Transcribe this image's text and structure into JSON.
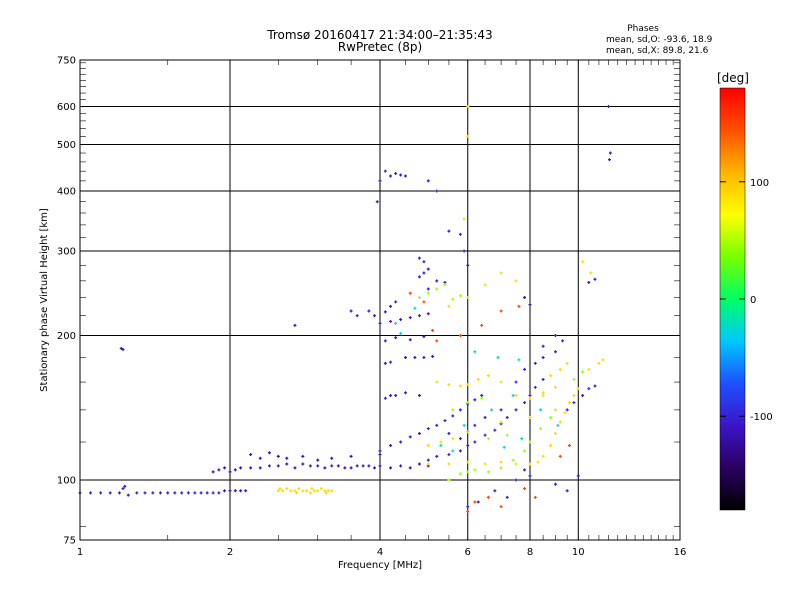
{
  "chart_data": {
    "type": "scatter",
    "title": "Tromsø 20160417 21:34:00–21:35:43",
    "subtitle": "RwPretec (8p)",
    "xlabel": "Frequency [MHz]",
    "ylabel": "Stationary phase Virtual Height [km]",
    "x_scale": "log",
    "y_scale": "log",
    "xlim": [
      1,
      16
    ],
    "ylim": [
      75,
      750
    ],
    "x_ticks": [
      1,
      2,
      4,
      6,
      8,
      10,
      16
    ],
    "y_ticks": [
      75,
      100,
      200,
      300,
      400,
      500,
      600,
      750
    ],
    "grid": true,
    "info": {
      "heading": "Phases",
      "line1": "mean, sd,O:  -93.6, 18.9",
      "line2": "mean, sd,X:  89.8, 21.6"
    },
    "colorbar": {
      "label": "[deg]",
      "ticks": [
        100,
        0,
        -100
      ],
      "range": [
        -180,
        180
      ],
      "colors": [
        "#000000",
        "#2a0060",
        "#3c14c8",
        "#1e50ff",
        "#00c8ff",
        "#00ff64",
        "#78ff00",
        "#ffff00",
        "#ffb400",
        "#ff5000",
        "#ff0000"
      ]
    },
    "series": [
      {
        "phase": -110,
        "points": [
          [
            1.0,
            94
          ],
          [
            1.05,
            94
          ],
          [
            1.1,
            94
          ],
          [
            1.15,
            94
          ],
          [
            1.2,
            94
          ],
          [
            1.25,
            93
          ],
          [
            1.3,
            94
          ],
          [
            1.35,
            94
          ],
          [
            1.4,
            94
          ],
          [
            1.45,
            94
          ],
          [
            1.5,
            94
          ],
          [
            1.55,
            94
          ],
          [
            1.6,
            94
          ],
          [
            1.65,
            94
          ],
          [
            1.7,
            94
          ],
          [
            1.75,
            94
          ],
          [
            1.8,
            94
          ],
          [
            1.85,
            94
          ],
          [
            1.9,
            94
          ],
          [
            1.95,
            95
          ],
          [
            2.0,
            95
          ],
          [
            2.05,
            95
          ],
          [
            2.1,
            95
          ],
          [
            2.15,
            95
          ],
          [
            1.22,
            96
          ],
          [
            1.23,
            97
          ],
          [
            1.21,
            188
          ],
          [
            1.22,
            187
          ]
        ]
      },
      {
        "phase": -115,
        "points": [
          [
            1.85,
            104
          ],
          [
            1.9,
            105
          ],
          [
            1.95,
            106
          ],
          [
            2.0,
            104
          ],
          [
            2.05,
            105
          ],
          [
            2.1,
            106
          ],
          [
            2.2,
            106
          ],
          [
            2.3,
            106
          ],
          [
            2.4,
            107
          ],
          [
            2.5,
            107
          ],
          [
            2.6,
            108
          ],
          [
            2.7,
            106
          ],
          [
            2.8,
            108
          ],
          [
            2.9,
            107
          ],
          [
            3.0,
            107
          ],
          [
            3.1,
            106
          ],
          [
            3.2,
            107
          ],
          [
            3.3,
            107
          ],
          [
            3.4,
            106
          ],
          [
            3.5,
            106
          ],
          [
            3.6,
            107
          ],
          [
            3.7,
            107
          ],
          [
            3.8,
            107
          ],
          [
            3.9,
            106
          ],
          [
            4.0,
            107
          ],
          [
            4.2,
            106
          ],
          [
            4.4,
            107
          ],
          [
            4.6,
            106
          ],
          [
            4.8,
            108
          ],
          [
            5.0,
            107
          ],
          [
            2.2,
            113
          ],
          [
            2.3,
            111
          ],
          [
            2.4,
            114
          ],
          [
            2.5,
            112
          ],
          [
            2.6,
            111
          ],
          [
            2.8,
            112
          ],
          [
            3.0,
            110
          ],
          [
            3.2,
            111
          ],
          [
            3.5,
            112
          ],
          [
            4.0,
            113
          ]
        ]
      },
      {
        "phase": -105,
        "points": [
          [
            4.0,
            115
          ],
          [
            4.2,
            118
          ],
          [
            4.4,
            120
          ],
          [
            4.6,
            123
          ],
          [
            4.8,
            125
          ],
          [
            5.0,
            128
          ],
          [
            5.2,
            130
          ],
          [
            5.4,
            133
          ],
          [
            5.6,
            136
          ],
          [
            5.8,
            140
          ],
          [
            6.0,
            144
          ],
          [
            6.2,
            147
          ],
          [
            6.4,
            150
          ],
          [
            4.1,
            148
          ],
          [
            4.2,
            150
          ],
          [
            4.3,
            150
          ],
          [
            4.5,
            152
          ],
          [
            4.8,
            150
          ],
          [
            4.1,
            175
          ],
          [
            4.2,
            176
          ],
          [
            4.5,
            180
          ],
          [
            4.7,
            180
          ],
          [
            4.9,
            180
          ],
          [
            5.1,
            181
          ],
          [
            4.0,
            212
          ],
          [
            4.2,
            214
          ],
          [
            4.4,
            216
          ],
          [
            4.6,
            218
          ],
          [
            4.8,
            220
          ],
          [
            5.0,
            222
          ],
          [
            3.8,
            225
          ],
          [
            3.9,
            220
          ],
          [
            4.1,
            224
          ],
          [
            4.2,
            230
          ],
          [
            4.3,
            235
          ],
          [
            4.1,
            195
          ],
          [
            4.3,
            198
          ],
          [
            4.6,
            196
          ],
          [
            4.9,
            199
          ],
          [
            4.8,
            265
          ],
          [
            4.9,
            270
          ],
          [
            5.0,
            275
          ],
          [
            5.2,
            260
          ],
          [
            5.4,
            258
          ],
          [
            4.8,
            290
          ],
          [
            4.9,
            285
          ],
          [
            5.0,
            250
          ],
          [
            4.0,
            420
          ],
          [
            4.1,
            440
          ],
          [
            4.2,
            430
          ],
          [
            4.3,
            435
          ],
          [
            4.4,
            432
          ],
          [
            4.5,
            430
          ],
          [
            3.95,
            380
          ],
          [
            5.0,
            420
          ],
          [
            5.2,
            400
          ],
          [
            5.5,
            330
          ],
          [
            5.8,
            325
          ],
          [
            5.9,
            300
          ],
          [
            6.0,
            280
          ],
          [
            7.8,
            240
          ],
          [
            8.0,
            232
          ],
          [
            10.5,
            258
          ],
          [
            10.8,
            262
          ],
          [
            11.5,
            600
          ],
          [
            11.6,
            480
          ],
          [
            11.55,
            465
          ],
          [
            2.7,
            210
          ],
          [
            3.5,
            225
          ],
          [
            3.6,
            220
          ]
        ]
      },
      {
        "phase": -100,
        "points": [
          [
            5.0,
            110
          ],
          [
            5.2,
            112
          ],
          [
            5.5,
            113
          ],
          [
            5.8,
            115
          ],
          [
            6.0,
            118
          ],
          [
            6.2,
            120
          ],
          [
            6.5,
            124
          ],
          [
            6.8,
            127
          ],
          [
            7.0,
            131
          ],
          [
            7.2,
            135
          ],
          [
            7.5,
            140
          ],
          [
            7.8,
            145
          ],
          [
            8.0,
            150
          ],
          [
            8.2,
            156
          ],
          [
            8.5,
            162
          ],
          [
            5.5,
            125
          ],
          [
            5.8,
            122
          ],
          [
            6.0,
            126
          ],
          [
            6.2,
            130
          ],
          [
            6.5,
            135
          ],
          [
            7.0,
            140
          ],
          [
            7.5,
            160
          ],
          [
            7.8,
            170
          ],
          [
            8.2,
            175
          ],
          [
            8.5,
            180
          ],
          [
            9.0,
            185
          ],
          [
            9.5,
            140
          ],
          [
            9.8,
            145
          ],
          [
            10.2,
            150
          ],
          [
            10.5,
            155
          ],
          [
            10.8,
            157
          ],
          [
            7.5,
            100
          ],
          [
            7.8,
            105
          ],
          [
            8.0,
            102
          ],
          [
            6.8,
            95
          ],
          [
            7.2,
            92
          ],
          [
            9.0,
            98
          ],
          [
            9.5,
            95
          ],
          [
            10.0,
            102
          ],
          [
            6.0,
            88
          ],
          [
            6.3,
            90
          ],
          [
            8.5,
            190
          ],
          [
            9.0,
            200
          ],
          [
            9.3,
            195
          ]
        ]
      },
      {
        "phase": 90,
        "points": [
          [
            2.5,
            95
          ],
          [
            2.55,
            95
          ],
          [
            2.6,
            96
          ],
          [
            2.65,
            95
          ],
          [
            2.7,
            95
          ],
          [
            2.75,
            96
          ],
          [
            2.8,
            95
          ],
          [
            2.85,
            95
          ],
          [
            2.9,
            94
          ],
          [
            2.95,
            95
          ],
          [
            3.0,
            95
          ],
          [
            3.05,
            96
          ],
          [
            3.1,
            95
          ],
          [
            3.15,
            95
          ],
          [
            3.2,
            95
          ],
          [
            2.52,
            96
          ],
          [
            2.72,
            94
          ],
          [
            2.92,
            96
          ],
          [
            3.12,
            94
          ],
          [
            5.0,
            108
          ],
          [
            5.5,
            108
          ],
          [
            6.0,
            109
          ],
          [
            6.5,
            108
          ],
          [
            7.0,
            109
          ],
          [
            7.5,
            108
          ],
          [
            8.0,
            108
          ],
          [
            8.3,
            109
          ],
          [
            8.5,
            112
          ],
          [
            8.8,
            118
          ],
          [
            9.0,
            125
          ],
          [
            9.2,
            132
          ],
          [
            9.4,
            138
          ],
          [
            9.6,
            145
          ],
          [
            9.8,
            150
          ],
          [
            5.2,
            160
          ],
          [
            5.5,
            158
          ],
          [
            5.8,
            157
          ],
          [
            6.0,
            158
          ],
          [
            6.3,
            162
          ],
          [
            6.6,
            165
          ],
          [
            7.0,
            160
          ],
          [
            7.5,
            150
          ],
          [
            8.0,
            148
          ],
          [
            8.5,
            152
          ],
          [
            9.0,
            156
          ],
          [
            5.0,
            118
          ],
          [
            5.3,
            120
          ],
          [
            5.6,
            122
          ],
          [
            6.0,
            126
          ],
          [
            7.0,
            132
          ],
          [
            8.0,
            135
          ],
          [
            9.0,
            140
          ],
          [
            10.0,
            155
          ],
          [
            10.5,
            170
          ],
          [
            11.0,
            175
          ],
          [
            11.2,
            178
          ],
          [
            7.5,
            260
          ],
          [
            7.0,
            270
          ],
          [
            6.5,
            255
          ],
          [
            6.0,
            240
          ],
          [
            5.5,
            230
          ],
          [
            6.0,
            520
          ],
          [
            6.0,
            600
          ],
          [
            5.9,
            350
          ],
          [
            10.2,
            285
          ],
          [
            10.6,
            270
          ],
          [
            8.5,
            150
          ],
          [
            8.8,
            165
          ],
          [
            9.2,
            170
          ],
          [
            9.5,
            175
          ]
        ]
      },
      {
        "phase": 45,
        "points": [
          [
            5.5,
            100
          ],
          [
            5.8,
            103
          ],
          [
            6.0,
            104
          ],
          [
            6.2,
            105
          ],
          [
            6.6,
            104
          ],
          [
            7.0,
            106
          ],
          [
            7.4,
            110
          ],
          [
            7.8,
            115
          ],
          [
            8.0,
            120
          ],
          [
            8.4,
            128
          ],
          [
            8.8,
            135
          ],
          [
            5.6,
            140
          ],
          [
            6.0,
            145
          ],
          [
            6.4,
            148
          ],
          [
            4.8,
            240
          ],
          [
            5.0,
            245
          ],
          [
            5.2,
            250
          ],
          [
            5.4,
            255
          ],
          [
            5.6,
            238
          ],
          [
            5.8,
            242
          ],
          [
            6.6,
            122
          ],
          [
            7.2,
            124
          ],
          [
            9.8,
            162
          ],
          [
            10.2,
            168
          ]
        ]
      },
      {
        "phase": 150,
        "points": [
          [
            6.0,
            86
          ],
          [
            6.2,
            90
          ],
          [
            6.6,
            92
          ],
          [
            7.0,
            88
          ],
          [
            7.8,
            96
          ],
          [
            8.2,
            92
          ],
          [
            9.2,
            112
          ],
          [
            9.6,
            118
          ],
          [
            5.2,
            195
          ],
          [
            5.8,
            200
          ],
          [
            6.4,
            210
          ],
          [
            7.0,
            225
          ],
          [
            7.6,
            230
          ],
          [
            4.6,
            245
          ],
          [
            4.9,
            235
          ],
          [
            5.1,
            205
          ]
        ]
      },
      {
        "phase": -20,
        "points": [
          [
            5.3,
            118
          ],
          [
            5.9,
            130
          ],
          [
            6.7,
            140
          ],
          [
            7.4,
            150
          ],
          [
            4.3,
            212
          ],
          [
            4.7,
            228
          ],
          [
            6.2,
            185
          ],
          [
            6.9,
            180
          ],
          [
            7.6,
            178
          ],
          [
            8.4,
            140
          ],
          [
            9.1,
            130
          ],
          [
            4.4,
            202
          ],
          [
            5.6,
            115
          ],
          [
            7.1,
            117
          ],
          [
            7.7,
            122
          ]
        ]
      }
    ]
  }
}
